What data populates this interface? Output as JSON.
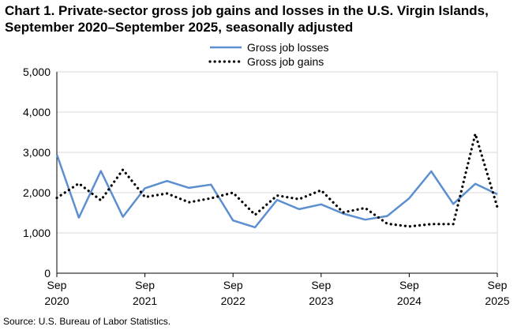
{
  "title_line1": "Chart 1. Private-sector gross job gains and losses in the U.S. Virgin Islands,",
  "title_line2": "September 2020–September 2025, seasonally adjusted",
  "source": "Source: U.S. Bureau of Labor Statistics.",
  "chart_data": {
    "type": "line",
    "title": "Chart 1. Private-sector gross job gains and losses in the U.S. Virgin Islands, September 2020–September 2025, seasonally adjusted",
    "xlabel": "",
    "ylabel": "",
    "ylim": [
      0,
      5000
    ],
    "yticks": [
      "0",
      "1,000",
      "2,000",
      "3,000",
      "4,000",
      "5,000"
    ],
    "xticks": [
      {
        "month": "Sep",
        "year": "2020"
      },
      {
        "month": "Sep",
        "year": "2021"
      },
      {
        "month": "Sep",
        "year": "2022"
      },
      {
        "month": "Sep",
        "year": "2023"
      },
      {
        "month": "Sep",
        "year": "2024"
      },
      {
        "month": "Sep",
        "year": "2025"
      }
    ],
    "x": [
      "Sep 2020",
      "Dec 2020",
      "Mar 2021",
      "Jun 2021",
      "Sep 2021",
      "Dec 2021",
      "Mar 2022",
      "Jun 2022",
      "Sep 2022",
      "Dec 2022",
      "Mar 2023",
      "Jun 2023",
      "Sep 2023",
      "Dec 2023",
      "Mar 2024",
      "Jun 2024",
      "Sep 2024",
      "Dec 2024",
      "Mar 2025",
      "Jun 2025",
      "Sep 2025"
    ],
    "grid": true,
    "legend_position": "top-center",
    "series": [
      {
        "name": "Gross job losses",
        "style": "solid",
        "color": "#5b8fd0",
        "values": [
          2950,
          1380,
          2540,
          1400,
          2110,
          2290,
          2120,
          2200,
          1310,
          1140,
          1820,
          1590,
          1710,
          1480,
          1330,
          1420,
          1860,
          2530,
          1720,
          2220,
          1960
        ]
      },
      {
        "name": "Gross job gains",
        "style": "dotted",
        "color": "#000000",
        "values": [
          1870,
          2230,
          1810,
          2570,
          1890,
          1980,
          1760,
          1860,
          2000,
          1450,
          1930,
          1840,
          2060,
          1510,
          1620,
          1230,
          1160,
          1220,
          1220,
          3460,
          1640
        ]
      }
    ]
  }
}
